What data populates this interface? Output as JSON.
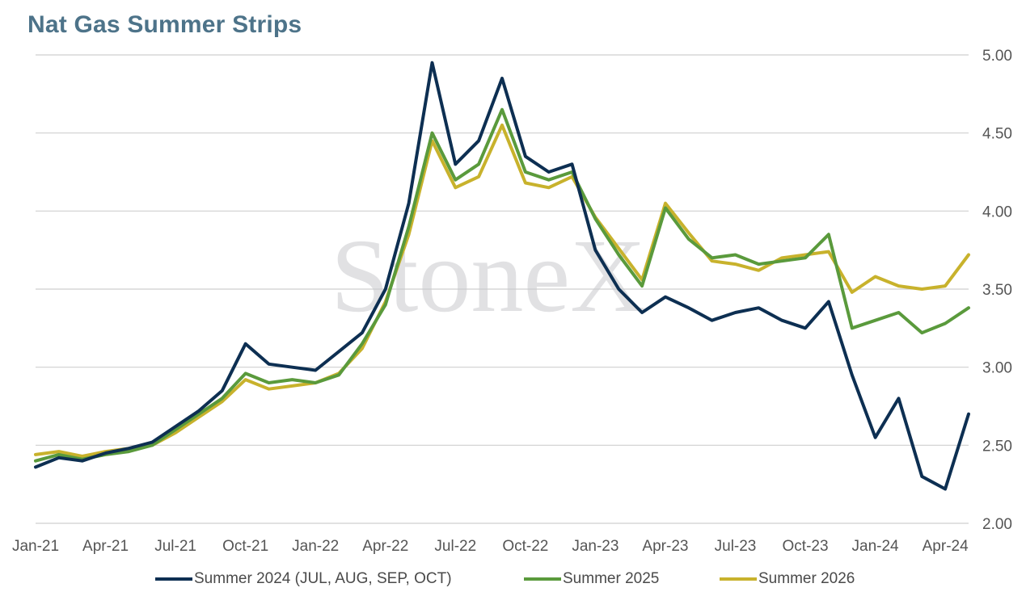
{
  "title": "Nat Gas Summer Strips",
  "watermark": "StoneX",
  "chart_data": {
    "type": "line",
    "title": "Nat Gas Summer Strips",
    "xlabel": "",
    "ylabel": "",
    "ylim": [
      2.0,
      5.0
    ],
    "y_axis_position": "right",
    "y_ticks": [
      "2.00",
      "2.50",
      "3.00",
      "3.50",
      "4.00",
      "4.50",
      "5.00"
    ],
    "x_ticks": [
      "Jan-21",
      "Apr-21",
      "Jul-21",
      "Oct-21",
      "Jan-22",
      "Apr-22",
      "Jul-22",
      "Oct-22",
      "Jan-23",
      "Apr-23",
      "Jul-23",
      "Oct-23",
      "Jan-24",
      "Apr-24"
    ],
    "grid": true,
    "legend_position": "bottom",
    "x": [
      "2021-01",
      "2021-02",
      "2021-03",
      "2021-04",
      "2021-05",
      "2021-06",
      "2021-07",
      "2021-08",
      "2021-09",
      "2021-10",
      "2021-11",
      "2021-12",
      "2022-01",
      "2022-02",
      "2022-03",
      "2022-04",
      "2022-05",
      "2022-06",
      "2022-07",
      "2022-08",
      "2022-09",
      "2022-10",
      "2022-11",
      "2022-12",
      "2023-01",
      "2023-02",
      "2023-03",
      "2023-04",
      "2023-05",
      "2023-06",
      "2023-07",
      "2023-08",
      "2023-09",
      "2023-10",
      "2023-11",
      "2023-12",
      "2024-01",
      "2024-02",
      "2024-03",
      "2024-04",
      "2024-05"
    ],
    "series": [
      {
        "name": "Summer 2024 (JUL, AUG, SEP, OCT)",
        "color": "#0d2f52",
        "values": [
          2.36,
          2.42,
          2.4,
          2.45,
          2.48,
          2.52,
          2.62,
          2.72,
          2.85,
          3.15,
          3.02,
          3.0,
          2.98,
          3.1,
          3.22,
          3.5,
          4.05,
          4.95,
          4.3,
          4.45,
          4.85,
          4.35,
          4.25,
          4.3,
          3.75,
          3.5,
          3.35,
          3.45,
          3.38,
          3.3,
          3.35,
          3.38,
          3.3,
          3.25,
          3.42,
          2.95,
          2.55,
          2.8,
          2.3,
          2.22,
          2.7
        ]
      },
      {
        "name": "Summer 2025",
        "color": "#5a9a3c",
        "values": [
          2.4,
          2.44,
          2.41,
          2.44,
          2.46,
          2.5,
          2.6,
          2.7,
          2.8,
          2.96,
          2.9,
          2.92,
          2.9,
          2.95,
          3.15,
          3.4,
          3.9,
          4.5,
          4.2,
          4.3,
          4.65,
          4.25,
          4.2,
          4.25,
          3.95,
          3.72,
          3.52,
          4.02,
          3.82,
          3.7,
          3.72,
          3.66,
          3.68,
          3.7,
          3.85,
          3.25,
          3.3,
          3.35,
          3.22,
          3.28,
          3.38
        ]
      },
      {
        "name": "Summer 2026",
        "color": "#c8b22c",
        "values": [
          2.44,
          2.46,
          2.43,
          2.46,
          2.48,
          2.5,
          2.58,
          2.68,
          2.78,
          2.92,
          2.86,
          2.88,
          2.9,
          2.96,
          3.12,
          3.42,
          3.85,
          4.45,
          4.15,
          4.22,
          4.55,
          4.18,
          4.15,
          4.22,
          3.96,
          3.76,
          3.56,
          4.05,
          3.86,
          3.68,
          3.66,
          3.62,
          3.7,
          3.72,
          3.74,
          3.48,
          3.58,
          3.52,
          3.5,
          3.52,
          3.72
        ]
      }
    ]
  }
}
